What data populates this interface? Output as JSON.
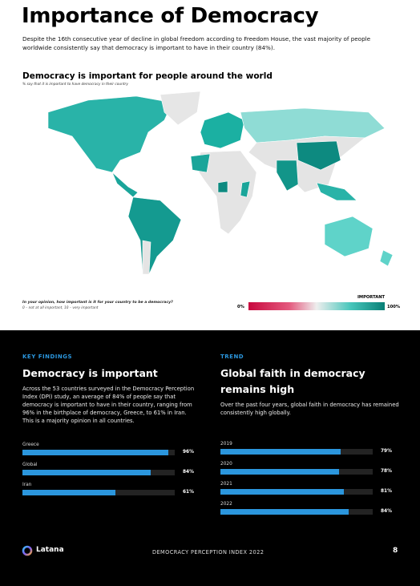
{
  "header": {
    "title": "Importance of Democracy",
    "intro": "Despite the 16th consecutive year of decline in global freedom according to Freedom House, the vast majority of people worldwide consistently say that democracy is important to have in their country (84%)."
  },
  "map": {
    "title": "Democracy is important for people around the world",
    "subtitle": "% say that it is important to have democracy in their country",
    "question": "In your opinion, how important is it for your country to be a democracy?",
    "scale_note": "0 – not at all important, 10 – very important",
    "legend": {
      "title": "IMPORTANT",
      "min_label": "0%",
      "max_label": "100%"
    }
  },
  "key_findings": {
    "eyebrow": "KEY FINDINGS",
    "title": "Democracy is important",
    "text": "Across the 53 countries surveyed in the Democracy Perception Index (DPI) study, an average of 84% of people say that democracy is important to have in their country, ranging from 96% in the birthplace of democracy, Greece, to 61% in Iran. This is a majority opinion in all countries.",
    "categories": [
      "Greece",
      "Global",
      "Iran"
    ],
    "values": [
      96,
      84,
      61
    ],
    "value_labels": [
      "96%",
      "84%",
      "61%"
    ],
    "xlim": [
      0,
      100
    ],
    "color": "#2b96dd"
  },
  "trend": {
    "eyebrow": "TREND",
    "title": "Global faith in democracy remains high",
    "text": "Over the past four years, global faith in democracy has remained consistently high globally.",
    "categories": [
      "2019",
      "2020",
      "2021",
      "2022"
    ],
    "values": [
      79,
      78,
      81,
      84
    ],
    "value_labels": [
      "79%",
      "78%",
      "81%",
      "84%"
    ],
    "xlim": [
      0,
      100
    ],
    "color": "#2b96dd"
  },
  "footer": {
    "brand": "Latana",
    "report": "DEMOCRACY PERCEPTION INDEX 2022",
    "page": "8"
  }
}
